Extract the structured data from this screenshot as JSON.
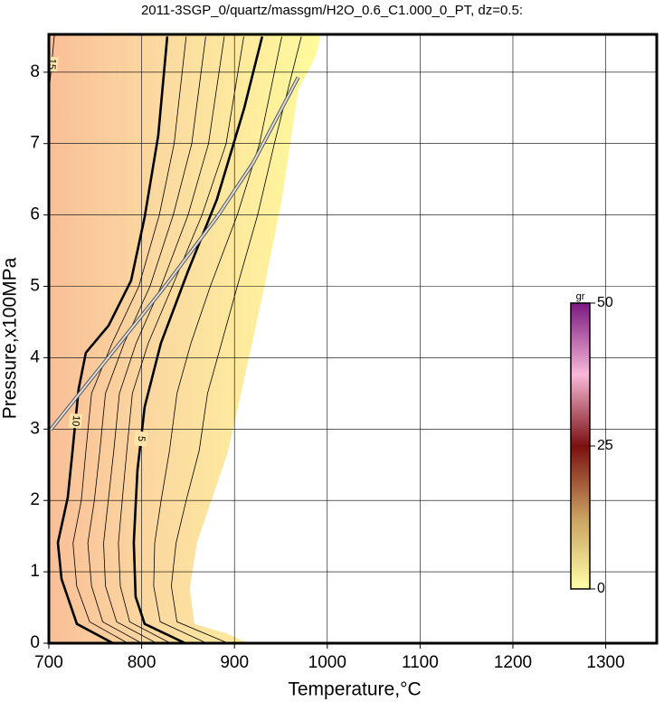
{
  "chart_data": {
    "type": "contour",
    "title": "2011-3SGP_0/quartz/massgm/H2O_0.6_C1.000_0_PT, dz=0.5:",
    "x_label": "Temperature,°C",
    "y_label": "Pressure,x100MPa",
    "xlim": [
      700,
      1355
    ],
    "ylim": [
      0,
      8.53
    ],
    "xticks": [
      700,
      800,
      900,
      1000,
      1100,
      1200,
      1300
    ],
    "yticks": [
      0,
      1,
      2,
      3,
      4,
      5,
      6,
      7,
      8
    ],
    "grid": true,
    "field_boundary": {
      "T": [
        915.2,
        890.8,
        856.8,
        851.9,
        859.7,
        876.2,
        892.8,
        910.3,
        931.7,
        951.2,
        968.7,
        988.2,
        993.1
      ],
      "P": [
        0,
        0.14,
        0.27,
        0.77,
        1.41,
        2.04,
        2.67,
        3.69,
        4.96,
        6.22,
        7.74,
        8.25,
        8.53
      ]
    },
    "reaction_line": {
      "T": [
        701.9,
        744.8,
        822.7,
        881.1,
        920.1,
        968.7
      ],
      "P": [
        2.99,
        3.69,
        4.96,
        5.97,
        6.73,
        7.93
      ]
    },
    "contours": [
      {
        "level": 15,
        "bold": false,
        "T": [
          700,
          706
        ],
        "P": [
          7.7,
          8.53
        ]
      },
      {
        "level": 10,
        "bold": true,
        "T": [
          769.1,
          730.2,
          713.6,
          709.7,
          720.4,
          725.3,
          732.1,
          739.9,
          764.3,
          788.6,
          803.2,
          817.8,
          827.6
        ],
        "P": [
          0,
          0.27,
          0.9,
          1.41,
          2.04,
          2.67,
          3.56,
          4.07,
          4.45,
          5.08,
          5.97,
          7.11,
          8.5
        ]
      },
      {
        "level": 9,
        "bold": false,
        "T": [
          785,
          744,
          730,
          726,
          735,
          740,
          746,
          768,
          797,
          819,
          835,
          848
        ],
        "P": [
          0,
          0.3,
          0.8,
          1.4,
          2,
          2.7,
          3.5,
          4.2,
          5,
          6,
          7,
          8.5
        ]
      },
      {
        "level": 8,
        "bold": false,
        "T": [
          800,
          758,
          746,
          742,
          749,
          755,
          761,
          781,
          809,
          834,
          854,
          869
        ],
        "P": [
          0,
          0.3,
          0.8,
          1.4,
          2,
          2.7,
          3.5,
          4.2,
          5,
          6,
          7,
          8.5
        ]
      },
      {
        "level": 7,
        "bold": false,
        "T": [
          816,
          773,
          761,
          759,
          764,
          770,
          776,
          794,
          821,
          850,
          872,
          889
        ],
        "P": [
          0,
          0.3,
          0.8,
          1.4,
          2,
          2.7,
          3.5,
          4.2,
          5,
          6,
          7,
          8.5
        ]
      },
      {
        "level": 6,
        "bold": false,
        "T": [
          831,
          787,
          777,
          775,
          779,
          784,
          790,
          807,
          833,
          865,
          891,
          910
        ],
        "P": [
          0,
          0.3,
          0.8,
          1.4,
          2,
          2.7,
          3.5,
          4.2,
          5,
          6,
          7,
          8.5
        ]
      },
      {
        "level": 5,
        "bold": true,
        "T": [
          847,
          803.2,
          793.5,
          791.5,
          795.4,
          803.2,
          820.7,
          849.9,
          881.1,
          910.3,
          929.8
        ],
        "P": [
          0,
          0.27,
          0.65,
          1.41,
          2.42,
          3.31,
          4.2,
          5.21,
          6.22,
          7.49,
          8.5
        ]
      },
      {
        "level": 4,
        "bold": false,
        "T": [
          870,
          820,
          813,
          814,
          821,
          830,
          838,
          853,
          874,
          903,
          927,
          951
        ],
        "P": [
          0,
          0.3,
          0.8,
          1.4,
          2,
          2.7,
          3.5,
          4.2,
          5,
          6,
          7,
          8.5
        ]
      },
      {
        "level": 3,
        "bold": false,
        "T": [
          893,
          838,
          832,
          837,
          848,
          862,
          871,
          886,
          903,
          925,
          943,
          972
        ],
        "P": [
          0,
          0.3,
          0.8,
          1.4,
          2,
          2.7,
          3.5,
          4.2,
          5,
          6,
          7,
          8.5
        ]
      }
    ],
    "colorbar": {
      "label": "gr",
      "lim": [
        0,
        50
      ],
      "ticks": [
        0,
        25,
        50
      ]
    }
  }
}
